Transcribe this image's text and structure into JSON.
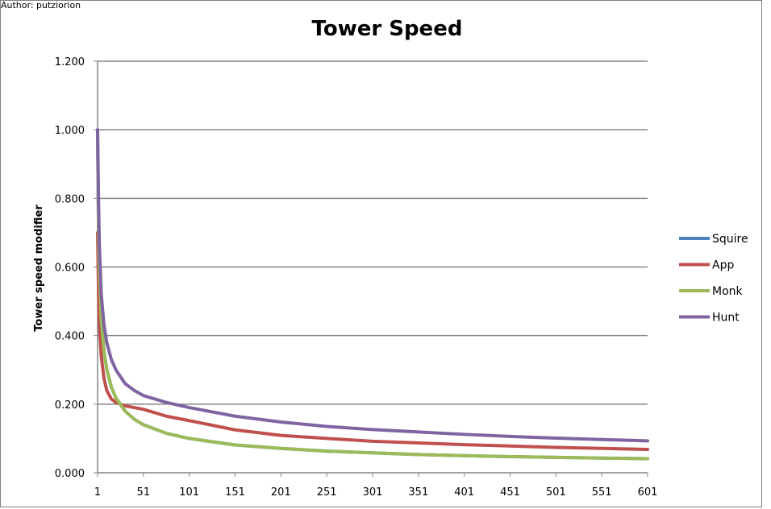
{
  "author": "Author: putziorion",
  "chart_data": {
    "type": "line",
    "title": "Tower Speed",
    "xlabel": "",
    "ylabel": "Tower speed modifier",
    "xlim": [
      1,
      601
    ],
    "ylim": [
      0,
      1.2
    ],
    "x_ticks": [
      "1",
      "51",
      "101",
      "151",
      "201",
      "251",
      "301",
      "351",
      "401",
      "451",
      "501",
      "551",
      "601"
    ],
    "y_ticks": [
      "0.000",
      "0.200",
      "0.400",
      "0.600",
      "0.800",
      "1.000",
      "1.200"
    ],
    "grid": true,
    "legend_position": "right",
    "x": [
      1,
      2,
      3,
      5,
      8,
      11,
      16,
      21,
      31,
      41,
      51,
      76,
      101,
      151,
      201,
      251,
      301,
      351,
      401,
      451,
      501,
      551,
      601
    ],
    "series": [
      {
        "name": "Squire",
        "color": "#4f81bd",
        "values": [
          1.0,
          0.707,
          0.577,
          0.447,
          0.354,
          0.302,
          0.25,
          0.218,
          0.18,
          0.156,
          0.14,
          0.115,
          0.1,
          0.081,
          0.071,
          0.063,
          0.058,
          0.053,
          0.05,
          0.047,
          0.045,
          0.043,
          0.041
        ]
      },
      {
        "name": "App",
        "color": "#c0504d",
        "values": [
          0.7,
          0.53,
          0.43,
          0.34,
          0.275,
          0.24,
          0.215,
          0.205,
          0.195,
          0.19,
          0.185,
          0.165,
          0.152,
          0.125,
          0.109,
          0.1,
          0.092,
          0.087,
          0.082,
          0.078,
          0.074,
          0.071,
          0.068
        ]
      },
      {
        "name": "Monk",
        "color": "#9bbb59",
        "values": [
          1.0,
          0.707,
          0.577,
          0.447,
          0.354,
          0.302,
          0.25,
          0.218,
          0.18,
          0.156,
          0.14,
          0.115,
          0.1,
          0.081,
          0.071,
          0.063,
          0.058,
          0.053,
          0.05,
          0.047,
          0.045,
          0.043,
          0.041
        ]
      },
      {
        "name": "Hunt",
        "color": "#8064a2",
        "values": [
          1.0,
          0.8,
          0.66,
          0.52,
          0.43,
          0.38,
          0.33,
          0.3,
          0.26,
          0.24,
          0.225,
          0.205,
          0.19,
          0.165,
          0.148,
          0.135,
          0.126,
          0.119,
          0.112,
          0.106,
          0.101,
          0.097,
          0.093
        ]
      }
    ]
  }
}
